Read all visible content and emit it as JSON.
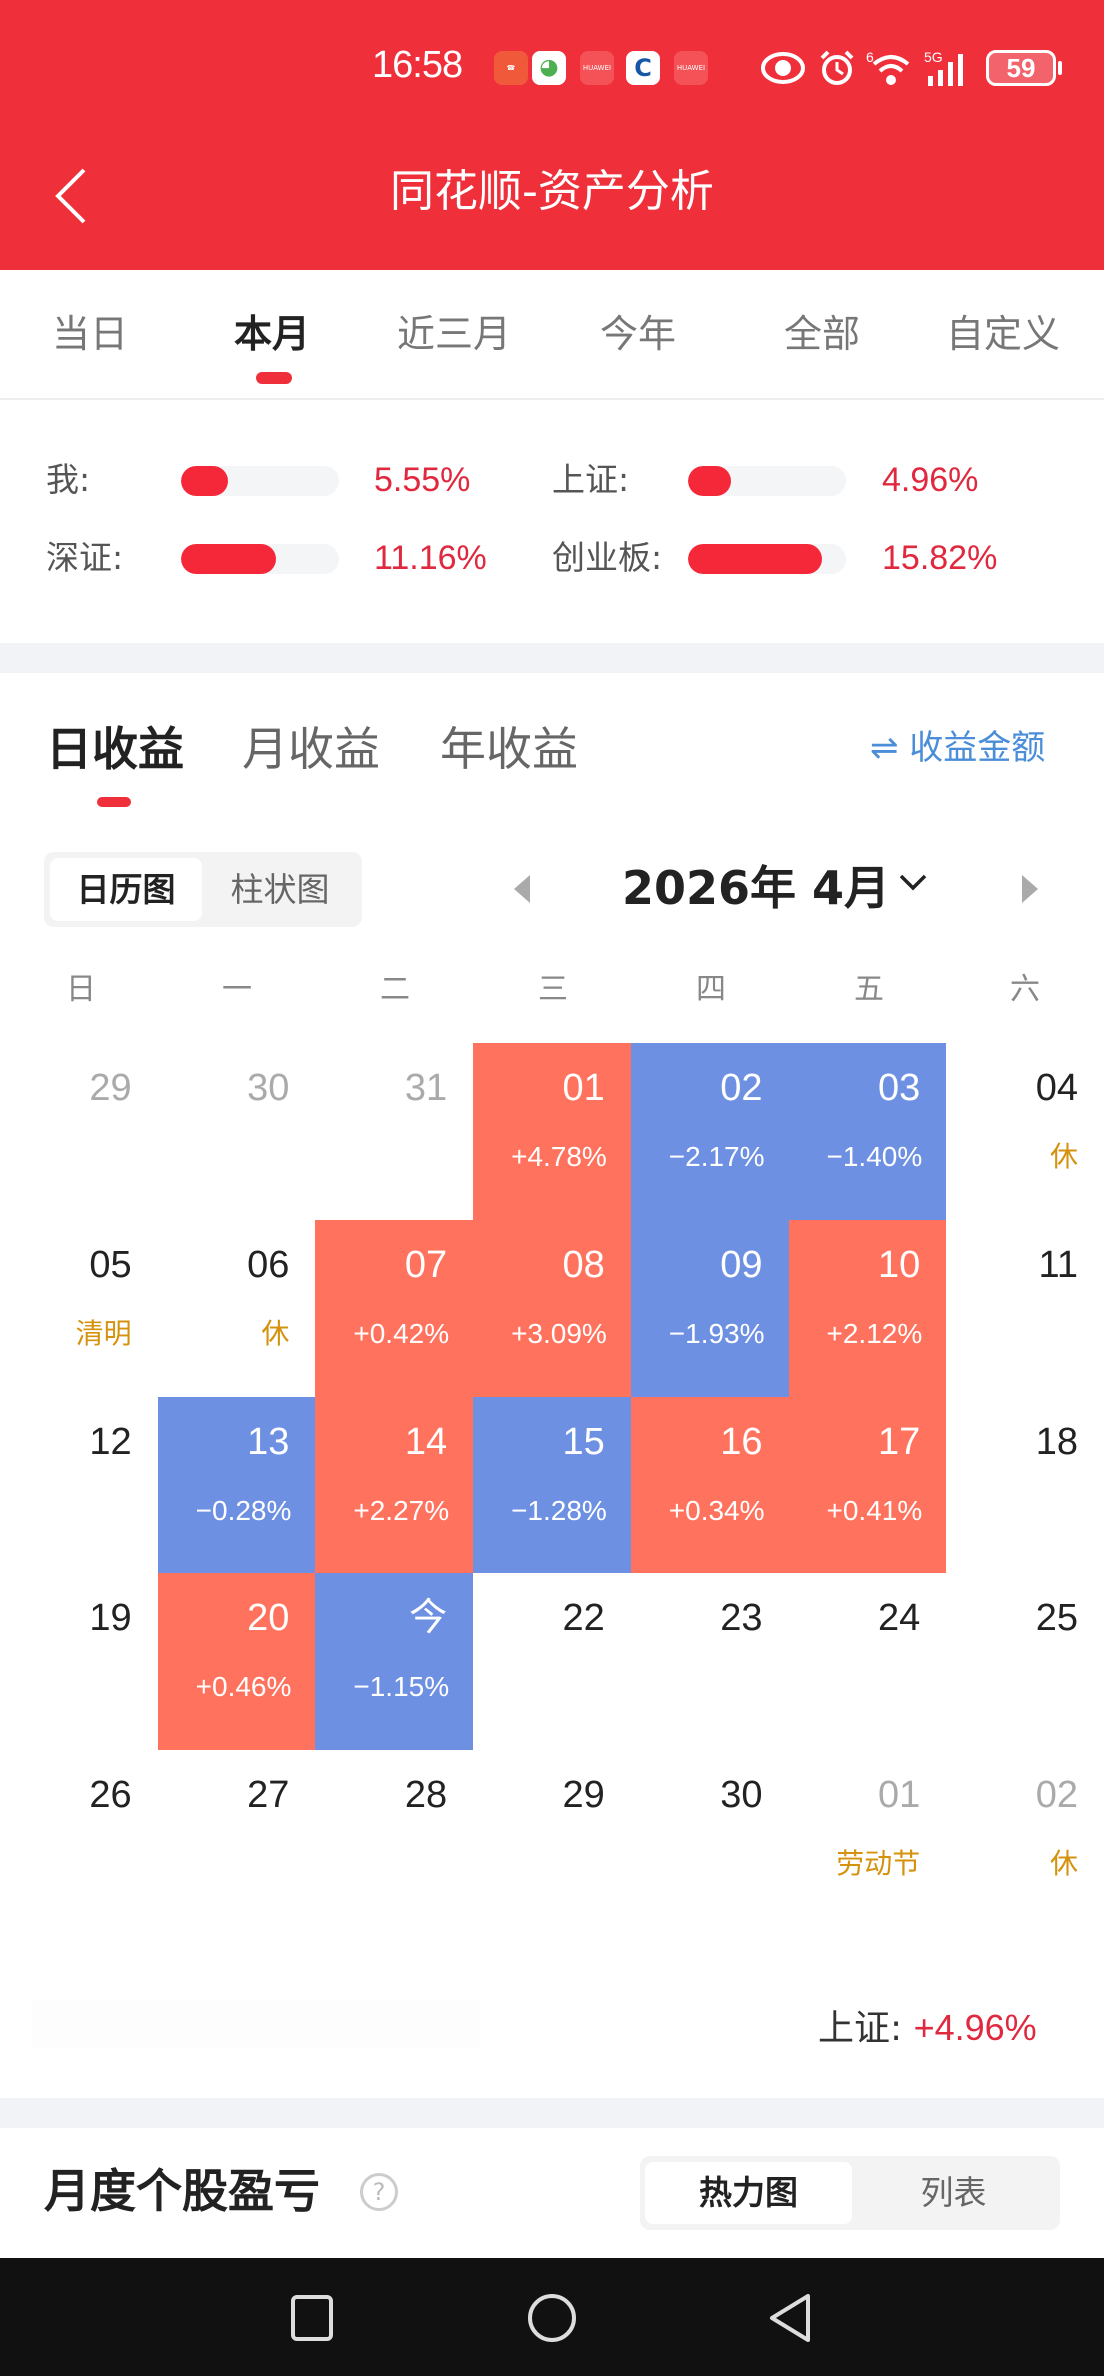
{
  "status_bar": {
    "time": "16:58",
    "battery": "59",
    "network": "5G",
    "wifi_badge": "6",
    "notification_icons": [
      "missed-call-icon",
      "app-ball-icon",
      "huawei-icon",
      "bank-icon",
      "huawei-icon"
    ],
    "system_icons": [
      "eye-comfort-icon",
      "alarm-icon",
      "wifi-icon",
      "signal-icon"
    ]
  },
  "header": {
    "title": "同花顺-资产分析",
    "back_icon": "chevron-left-icon",
    "brand_color": "#EF2F3A"
  },
  "period_tabs": {
    "items": [
      {
        "label": "当日",
        "active": false
      },
      {
        "label": "本月",
        "active": true
      },
      {
        "label": "近三月",
        "active": false
      },
      {
        "label": "今年",
        "active": false
      },
      {
        "label": "全部",
        "active": false
      },
      {
        "label": "自定义",
        "active": false
      }
    ]
  },
  "comparison": {
    "items": [
      {
        "label": "我:",
        "value": "5.55%",
        "fill_pct": 30
      },
      {
        "label": "上证:",
        "value": "4.96%",
        "fill_pct": 27
      },
      {
        "label": "深证:",
        "value": "11.16%",
        "fill_pct": 60
      },
      {
        "label": "创业板:",
        "value": "15.82%",
        "fill_pct": 85
      }
    ],
    "positive_color": "#E0283E"
  },
  "earnings": {
    "tabs": [
      {
        "label": "日收益",
        "active": true
      },
      {
        "label": "月收益",
        "active": false
      },
      {
        "label": "年收益",
        "active": false
      }
    ],
    "switch_label": "⇌ 收益金额",
    "switch_icon": "swap-icon",
    "view_toggle": [
      {
        "label": "日历图",
        "active": true
      },
      {
        "label": "柱状图",
        "active": false
      }
    ],
    "month_label": "2026年 4月",
    "prev_icon": "triangle-left-icon",
    "next_icon": "triangle-right-icon",
    "dropdown_icon": "chevron-down-icon"
  },
  "calendar": {
    "weekdays": [
      "日",
      "一",
      "二",
      "三",
      "四",
      "五",
      "六"
    ],
    "up_color": "#FF735E",
    "down_color": "#6E90E2",
    "holiday_color": "#D4920E",
    "weeks": [
      [
        {
          "day": "29",
          "other": true
        },
        {
          "day": "30",
          "other": true
        },
        {
          "day": "31",
          "other": true
        },
        {
          "day": "01",
          "change": "+4.78%",
          "dir": "up"
        },
        {
          "day": "02",
          "change": "−2.17%",
          "dir": "down"
        },
        {
          "day": "03",
          "change": "−1.40%",
          "dir": "down"
        },
        {
          "day": "04",
          "note": "休"
        }
      ],
      [
        {
          "day": "05",
          "note": "清明"
        },
        {
          "day": "06",
          "note": "休"
        },
        {
          "day": "07",
          "change": "+0.42%",
          "dir": "up"
        },
        {
          "day": "08",
          "change": "+3.09%",
          "dir": "up"
        },
        {
          "day": "09",
          "change": "−1.93%",
          "dir": "down"
        },
        {
          "day": "10",
          "change": "+2.12%",
          "dir": "up"
        },
        {
          "day": "11"
        }
      ],
      [
        {
          "day": "12"
        },
        {
          "day": "13",
          "change": "−0.28%",
          "dir": "down"
        },
        {
          "day": "14",
          "change": "+2.27%",
          "dir": "up"
        },
        {
          "day": "15",
          "change": "−1.28%",
          "dir": "down"
        },
        {
          "day": "16",
          "change": "+0.34%",
          "dir": "up"
        },
        {
          "day": "17",
          "change": "+0.41%",
          "dir": "up"
        },
        {
          "day": "18"
        }
      ],
      [
        {
          "day": "19"
        },
        {
          "day": "20",
          "change": "+0.46%",
          "dir": "up"
        },
        {
          "day": "今",
          "change": "−1.15%",
          "dir": "down"
        },
        {
          "day": "22"
        },
        {
          "day": "23"
        },
        {
          "day": "24"
        },
        {
          "day": "25"
        }
      ],
      [
        {
          "day": "26"
        },
        {
          "day": "27"
        },
        {
          "day": "28"
        },
        {
          "day": "29"
        },
        {
          "day": "30"
        },
        {
          "day": "01",
          "other": true,
          "note": "劳动节"
        },
        {
          "day": "02",
          "other": true,
          "note": "休"
        }
      ]
    ]
  },
  "index_summary": {
    "label": "上证:",
    "value": "+4.96%"
  },
  "monthly_stocks": {
    "title": "月度个股盈亏",
    "help_icon": "?",
    "toggle": [
      {
        "label": "热力图",
        "active": true
      },
      {
        "label": "列表",
        "active": false
      }
    ]
  },
  "nav_bar": {
    "buttons": [
      "recents-square-icon",
      "home-circle-icon",
      "back-triangle-icon"
    ]
  }
}
